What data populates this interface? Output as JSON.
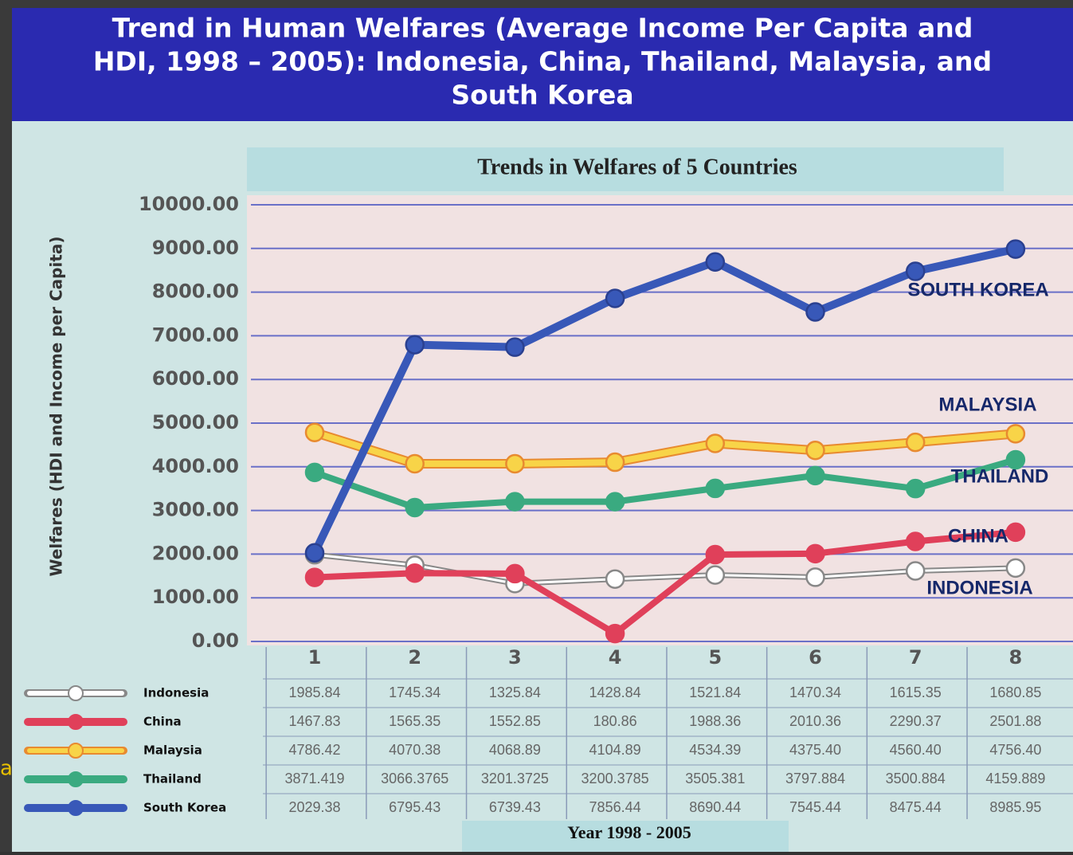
{
  "header": {
    "title_lines": [
      "Trend in Human Welfares (Average Income Per Capita and",
      "HDI, 1998 – 2005): Indonesia, China, Thailand, Malaysia, and",
      "South Korea"
    ]
  },
  "side_note": "a",
  "chart_data": {
    "type": "line",
    "title": "Trends in Welfares of 5 Countries",
    "y_label": "Welfares (HDI and Income per Capita)",
    "x_label": "Year 1998 - 2005",
    "categories": [
      "1",
      "2",
      "3",
      "4",
      "5",
      "6",
      "7",
      "8"
    ],
    "ylim": [
      0,
      10000
    ],
    "yticks": [
      {
        "value": 0,
        "label": "0.00"
      },
      {
        "value": 1000,
        "label": "1000.00"
      },
      {
        "value": 2000,
        "label": "2000.00"
      },
      {
        "value": 3000,
        "label": "3000.00"
      },
      {
        "value": 4000,
        "label": "4000.00"
      },
      {
        "value": 5000,
        "label": "5000.00"
      },
      {
        "value": 6000,
        "label": "6000.00"
      },
      {
        "value": 7000,
        "label": "7000.00"
      },
      {
        "value": 8000,
        "label": "8000.00"
      },
      {
        "value": 9000,
        "label": "9000.00"
      },
      {
        "value": 10000,
        "label": "10000.00"
      }
    ],
    "grid": true,
    "series": [
      {
        "name": "Indonesia",
        "color": "#ffffff",
        "values": [
          1985.84,
          1745.34,
          1325.84,
          1428.84,
          1521.84,
          1470.34,
          1615.35,
          1680.85
        ],
        "value_labels": [
          "1985.84",
          "1745.34",
          "1325.84",
          "1428.84",
          "1521.84",
          "1470.34",
          "1615.35",
          "1680.85"
        ]
      },
      {
        "name": "China",
        "color": "#e0405a",
        "values": [
          1467.83,
          1565.35,
          1552.85,
          180.86,
          1988.36,
          2010.36,
          2290.37,
          2501.88
        ],
        "value_labels": [
          "1467.83",
          "1565.35",
          "1552.85",
          "180.86",
          "1988.36",
          "2010.36",
          "2290.37",
          "2501.88"
        ]
      },
      {
        "name": "Malaysia",
        "color": "#f8d448",
        "values": [
          4786.42,
          4070.38,
          4068.89,
          4104.89,
          4534.39,
          4375.4,
          4560.4,
          4756.4
        ],
        "value_labels": [
          "4786.42",
          "4070.38",
          "4068.89",
          "4104.89",
          "4534.39",
          "4375.40",
          "4560.40",
          "4756.40"
        ]
      },
      {
        "name": "Thailand",
        "color": "#3aaa80",
        "values": [
          3871.419,
          3066.3765,
          3201.3725,
          3200.3785,
          3505.381,
          3797.884,
          3500.884,
          4159.889
        ],
        "value_labels": [
          "3871.419",
          "3066.3765",
          "3201.3725",
          "3200.3785",
          "3505.381",
          "3797.884",
          "3500.884",
          "4159.889"
        ]
      },
      {
        "name": "South Korea",
        "color": "#3858b8",
        "values": [
          2029.38,
          6795.43,
          6739.43,
          7856.44,
          8690.44,
          7545.44,
          8475.44,
          8985.95
        ],
        "value_labels": [
          "2029.38",
          "6795.43",
          "6739.43",
          "7856.44",
          "8690.44",
          "7545.44",
          "8475.44",
          "8985.95"
        ]
      }
    ],
    "annotations": [
      "SOUTH KOREA",
      "MALAYSIA",
      "THAILAND",
      "CHINA",
      "INDONESIA"
    ]
  }
}
